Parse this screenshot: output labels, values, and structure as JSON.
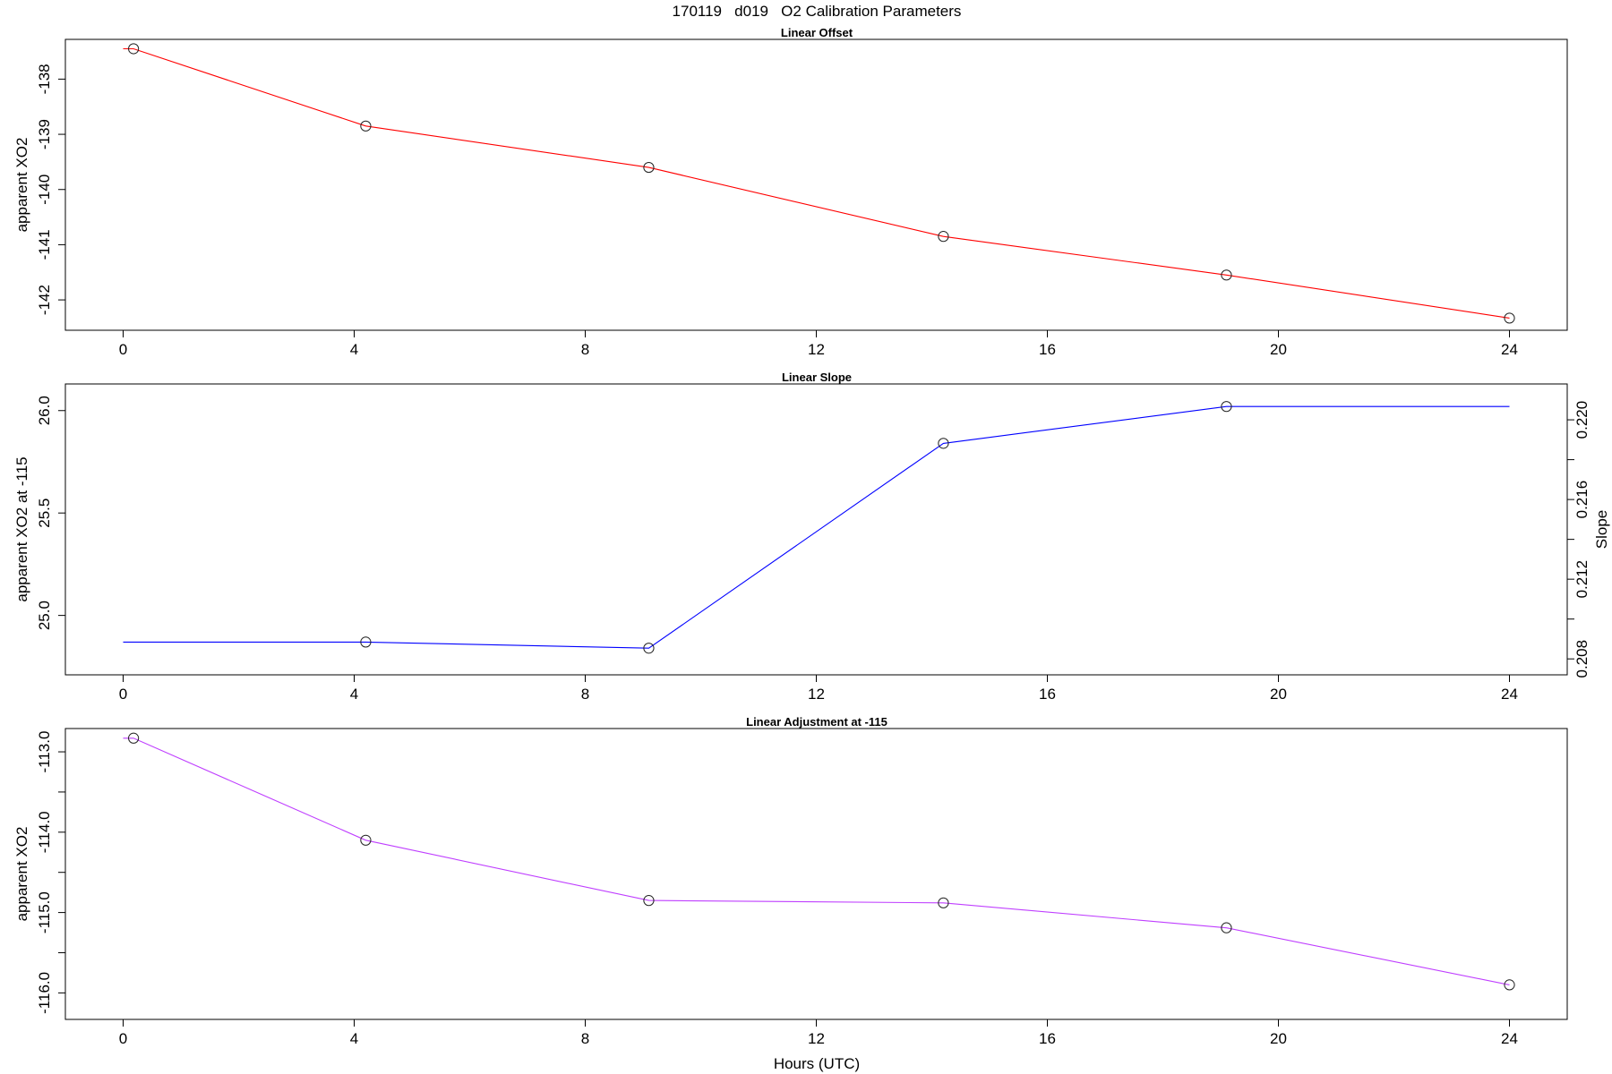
{
  "figure_title": "170119   d019   O2 Calibration Parameters",
  "x_axis_label": "Hours (UTC)",
  "chart_data": [
    {
      "type": "line",
      "title": "Linear Offset",
      "xlabel": "",
      "ylabel": "apparent XO2",
      "xlim": [
        -1,
        25
      ],
      "ylim": [
        -142.55,
        -137.28
      ],
      "x_ticks": [
        0,
        4,
        8,
        12,
        16,
        20,
        24
      ],
      "y_ticks": [
        -138,
        -139,
        -140,
        -141,
        -142
      ],
      "grid": false,
      "series": [
        {
          "color": "#ff0000",
          "points": [
            [
              0,
              -137.45
            ],
            [
              0.18,
              -137.45
            ],
            [
              4.2,
              -138.85
            ],
            [
              9.1,
              -139.6
            ],
            [
              14.2,
              -140.85
            ],
            [
              19.1,
              -141.55
            ],
            [
              24,
              -142.33
            ]
          ],
          "markers": [
            [
              0.18,
              -137.45
            ],
            [
              4.2,
              -138.85
            ],
            [
              9.1,
              -139.6
            ],
            [
              14.2,
              -140.85
            ],
            [
              19.1,
              -141.55
            ],
            [
              24,
              -142.33
            ]
          ]
        }
      ]
    },
    {
      "type": "line",
      "title": "Linear Slope",
      "xlabel": "",
      "ylabel": "apparent XO2 at -115",
      "ylabel_right": "Slope",
      "xlim": [
        -1,
        25
      ],
      "ylim": [
        24.71,
        26.13
      ],
      "y2lim": [
        0.2072,
        0.2218
      ],
      "x_ticks": [
        0,
        4,
        8,
        12,
        16,
        20,
        24
      ],
      "y_ticks": [
        25.0,
        25.5,
        26.0
      ],
      "y_tick_labels": [
        "25.0",
        "25.5",
        "26.0"
      ],
      "y2_ticks": [
        0.208,
        0.21,
        0.212,
        0.214,
        0.216,
        0.218,
        0.22
      ],
      "y2_tick_labels": [
        "0.208",
        "",
        "0.212",
        "",
        "0.216",
        "",
        "0.220"
      ],
      "grid": false,
      "series": [
        {
          "color": "#0000ff",
          "points": [
            [
              0,
              24.87
            ],
            [
              4.2,
              24.87
            ],
            [
              9.1,
              24.84
            ],
            [
              14.2,
              25.84
            ],
            [
              19.1,
              26.02
            ],
            [
              24,
              26.02
            ]
          ],
          "markers": [
            [
              4.2,
              24.87
            ],
            [
              9.1,
              24.84
            ],
            [
              14.2,
              25.84
            ],
            [
              19.1,
              26.02
            ]
          ]
        }
      ]
    },
    {
      "type": "line",
      "title": "Linear Adjustment at -115",
      "xlabel": "Hours (UTC)",
      "ylabel": "apparent XO2",
      "xlim": [
        -1,
        25
      ],
      "ylim": [
        -116.33,
        -112.71
      ],
      "x_ticks": [
        0,
        4,
        8,
        12,
        16,
        20,
        24
      ],
      "y_ticks": [
        -113.0,
        -114.0,
        -115.0,
        -116.0
      ],
      "y_minor_ticks": [
        -113.5,
        -114.5,
        -115.5
      ],
      "y_tick_labels": [
        "-113.0",
        "-114.0",
        "-115.0",
        "-116.0"
      ],
      "grid": false,
      "series": [
        {
          "color": "#bf3eff",
          "points": [
            [
              0,
              -112.83
            ],
            [
              0.18,
              -112.83
            ],
            [
              4.2,
              -114.1
            ],
            [
              9.1,
              -114.85
            ],
            [
              14.2,
              -114.88
            ],
            [
              19.1,
              -115.19
            ],
            [
              24,
              -115.9
            ]
          ],
          "markers": [
            [
              0.18,
              -112.83
            ],
            [
              4.2,
              -114.1
            ],
            [
              9.1,
              -114.85
            ],
            [
              14.2,
              -114.88
            ],
            [
              19.1,
              -115.19
            ],
            [
              24,
              -115.9
            ]
          ]
        }
      ]
    }
  ]
}
